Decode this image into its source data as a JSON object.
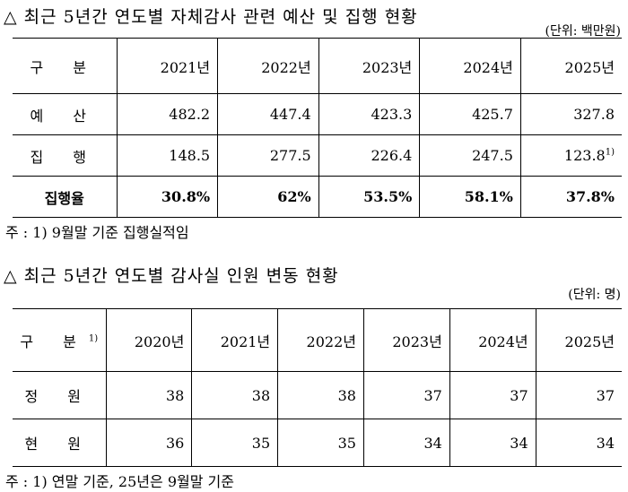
{
  "section1": {
    "title": "△ 최근 5년간 연도별 자체감사 관련 예산 및 집행 현황",
    "unit": "(단위: 백만원)",
    "table": {
      "header": [
        "구 분",
        "2021년",
        "2022년",
        "2023년",
        "2024년",
        "2025년"
      ],
      "rows": [
        [
          "예 산",
          "482.2",
          "447.4",
          "423.3",
          "425.7",
          "327.8"
        ],
        [
          "집 행",
          "148.5",
          "277.5",
          "226.4",
          "247.5",
          {
            "text": "123.8",
            "note": "1)"
          }
        ],
        [
          "집행율",
          "30.8%",
          "62%",
          "53.5%",
          "58.1%",
          "37.8%"
        ]
      ]
    },
    "footnote": "주 : 1) 9월말 기준 집행실적임"
  },
  "section2": {
    "title": "△ 최근 5년간 연도별 감사실 인원 변동 현황",
    "unit": "(단위: 명)",
    "table": {
      "header": [
        {
          "text": "구 분",
          "note": "1)"
        },
        "2020년",
        "2021년",
        "2022년",
        "2023년",
        "2024년",
        "2025년"
      ],
      "rows": [
        [
          "정 원",
          "38",
          "38",
          "38",
          "37",
          "37",
          "37"
        ],
        [
          "현 원",
          "36",
          "35",
          "35",
          "34",
          "34",
          "34"
        ]
      ]
    },
    "footnote": "주 : 1) 연말 기준, 25년은 9월말 기준"
  }
}
